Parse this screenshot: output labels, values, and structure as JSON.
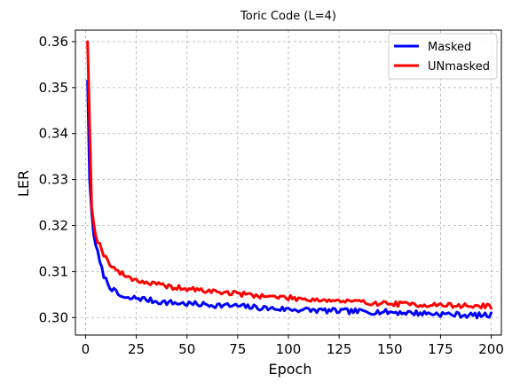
{
  "chart_data": {
    "type": "line",
    "title": "Toric Code (L=4)",
    "xlabel": "Epoch",
    "ylabel": "LER",
    "xlim": [
      -5,
      205
    ],
    "ylim": [
      0.2962,
      0.3625
    ],
    "xticks": [
      0,
      25,
      50,
      75,
      100,
      125,
      150,
      175,
      200
    ],
    "yticks": [
      0.3,
      0.31,
      0.32,
      0.33,
      0.34,
      0.35,
      0.36
    ],
    "ytick_labels": [
      "0.30",
      "0.31",
      "0.32",
      "0.33",
      "0.34",
      "0.35",
      "0.36"
    ],
    "grid": true,
    "legend_position": "top-right",
    "series": [
      {
        "name": "Masked",
        "color": "#0000ff",
        "anchors": [
          [
            1,
            0.3515
          ],
          [
            2,
            0.33
          ],
          [
            3,
            0.323
          ],
          [
            4,
            0.318
          ],
          [
            5,
            0.316
          ],
          [
            6,
            0.314
          ],
          [
            7,
            0.312
          ],
          [
            8,
            0.3105
          ],
          [
            9,
            0.3092
          ],
          [
            10,
            0.3082
          ],
          [
            12,
            0.3068
          ],
          [
            14,
            0.3058
          ],
          [
            16,
            0.305
          ],
          [
            18,
            0.3045
          ],
          [
            20,
            0.304
          ],
          [
            25,
            0.3043
          ],
          [
            30,
            0.3039
          ],
          [
            35,
            0.3035
          ],
          [
            40,
            0.3033
          ],
          [
            50,
            0.303
          ],
          [
            60,
            0.3028
          ],
          [
            75,
            0.3025
          ],
          [
            90,
            0.302
          ],
          [
            100,
            0.3018
          ],
          [
            125,
            0.3014
          ],
          [
            150,
            0.3012
          ],
          [
            175,
            0.3008
          ],
          [
            190,
            0.3005
          ],
          [
            200,
            0.3005
          ]
        ],
        "noise": 0.0006,
        "seed": 7
      },
      {
        "name": "UNmasked",
        "color": "#ff0000",
        "anchors": [
          [
            1,
            0.36
          ],
          [
            2,
            0.342
          ],
          [
            3,
            0.324
          ],
          [
            4,
            0.3205
          ],
          [
            5,
            0.318
          ],
          [
            6,
            0.3168
          ],
          [
            7,
            0.3158
          ],
          [
            8,
            0.3148
          ],
          [
            9,
            0.3138
          ],
          [
            10,
            0.313
          ],
          [
            12,
            0.3118
          ],
          [
            14,
            0.3108
          ],
          [
            16,
            0.31
          ],
          [
            18,
            0.3095
          ],
          [
            20,
            0.309
          ],
          [
            25,
            0.3082
          ],
          [
            30,
            0.3076
          ],
          [
            35,
            0.3072
          ],
          [
            40,
            0.3068
          ],
          [
            50,
            0.3062
          ],
          [
            60,
            0.3058
          ],
          [
            75,
            0.3052
          ],
          [
            90,
            0.3046
          ],
          [
            100,
            0.3043
          ],
          [
            125,
            0.3036
          ],
          [
            150,
            0.303
          ],
          [
            175,
            0.3027
          ],
          [
            190,
            0.3025
          ],
          [
            200,
            0.3025
          ]
        ],
        "noise": 0.00055,
        "seed": 19
      }
    ]
  }
}
